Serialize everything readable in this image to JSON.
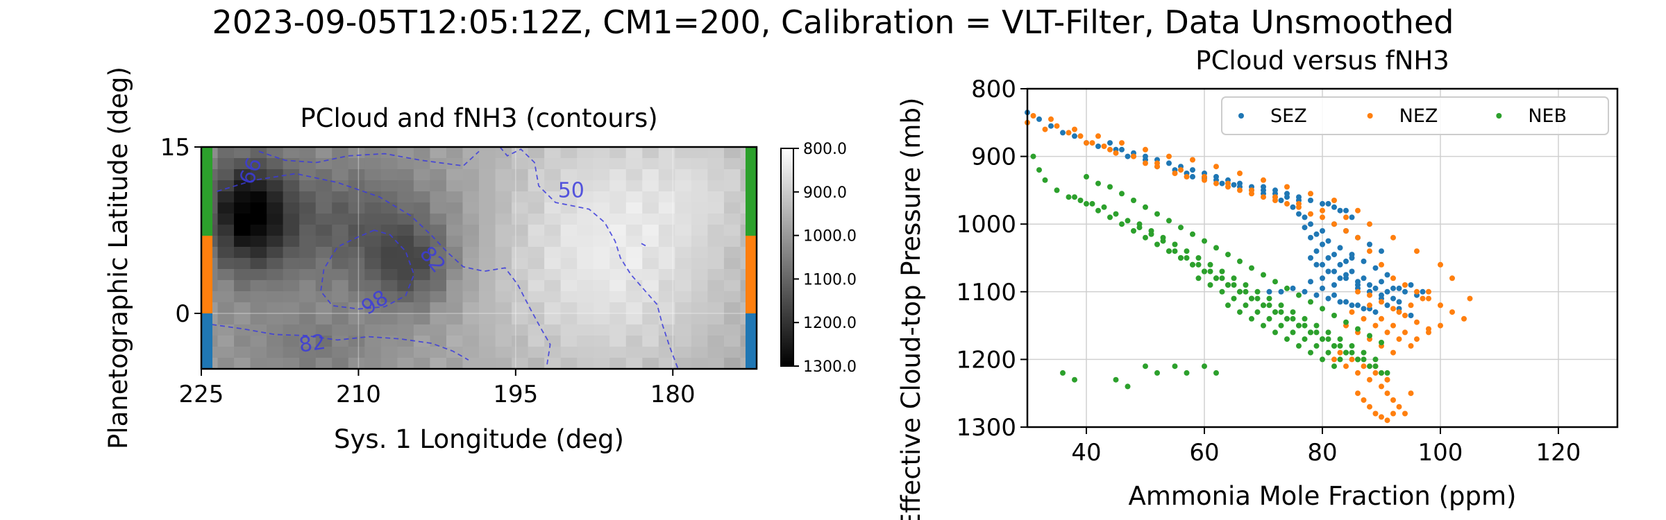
{
  "figure": {
    "suptitle": "2023-09-05T12:05:12Z, CM1=200, Calibration = VLT-Filter, Data Unsmoothed"
  },
  "chart_data": [
    {
      "type": "heatmap",
      "title": "PCloud and fNH3 (contours)",
      "xlabel": "Sys. 1 Longitude (deg)",
      "ylabel": "Planetographic Latitude (deg)",
      "xlim": [
        225,
        172
      ],
      "ylim": [
        -5,
        15
      ],
      "xticks": [
        "225",
        "210",
        "195",
        "180"
      ],
      "yticks": [
        "15",
        "0"
      ],
      "colormap": "gray",
      "colorbar": {
        "range": [
          800,
          1300
        ],
        "reversed": true,
        "ticks": [
          "800.0",
          "900.0",
          "1000.0",
          "1100.0",
          "1200.0",
          "1300.0"
        ]
      },
      "contours": {
        "color": "#3b3bdc",
        "labels": [
          "66",
          "50",
          "82",
          "98",
          "82"
        ]
      },
      "zone_bars": [
        {
          "name": "NEB",
          "color": "#2ca02c",
          "lat": [
            7,
            15
          ]
        },
        {
          "name": "NEZ",
          "color": "#ff7f0e",
          "lat": [
            0,
            7
          ]
        },
        {
          "name": "SEZ",
          "color": "#1f77b4",
          "lat": [
            -5,
            0
          ]
        }
      ],
      "grid": true
    },
    {
      "type": "scatter",
      "title": "PCloud versus fNH3",
      "xlabel": "Ammonia Mole Fraction (ppm)",
      "ylabel": "Effective Cloud-top Pressure (mb)",
      "xlim": [
        30,
        130
      ],
      "ylim": [
        1300,
        800
      ],
      "xticks": [
        "40",
        "60",
        "80",
        "100",
        "120"
      ],
      "yticks": [
        "800",
        "900",
        "1000",
        "1100",
        "1200",
        "1300"
      ],
      "legend": "top-right",
      "grid": true,
      "series": [
        {
          "name": "SEZ",
          "color": "#1f77b4",
          "x": [
            30,
            32,
            34,
            36,
            38,
            40,
            42,
            45,
            47,
            50,
            52,
            55,
            57,
            58,
            60,
            62,
            63,
            65,
            66,
            68,
            70,
            72,
            73,
            75,
            76,
            77,
            78,
            78,
            79,
            79,
            80,
            80,
            80,
            81,
            81,
            82,
            82,
            83,
            83,
            84,
            84,
            85,
            85,
            86,
            86,
            87,
            88,
            88,
            89,
            90,
            90,
            91,
            92,
            93,
            93,
            94,
            95,
            96,
            97,
            77,
            79,
            81,
            83,
            85,
            87,
            89,
            91,
            78,
            80,
            82,
            84,
            86,
            88,
            90,
            92,
            78,
            80,
            82,
            84,
            86,
            88,
            71,
            73,
            75,
            77,
            79,
            81,
            83,
            85,
            87,
            89,
            91,
            93,
            95,
            44,
            46,
            48,
            50,
            52,
            54,
            56,
            58,
            60,
            62,
            64,
            66,
            68,
            70,
            72,
            74,
            76,
            70,
            72,
            74,
            76,
            78,
            80,
            82,
            84,
            81,
            83,
            85,
            82,
            84,
            86,
            88,
            90
          ],
          "y": [
            835,
            845,
            855,
            865,
            870,
            880,
            885,
            890,
            900,
            905,
            915,
            920,
            925,
            930,
            932,
            935,
            940,
            942,
            945,
            950,
            955,
            960,
            965,
            975,
            985,
            990,
            1000,
            1020,
            1040,
            1060,
            1010,
            1030,
            1080,
            1050,
            1070,
            1045,
            1090,
            1060,
            1080,
            1055,
            1075,
            1050,
            1070,
            1085,
            1095,
            1080,
            1090,
            1100,
            1095,
            1085,
            1105,
            1100,
            1110,
            1095,
            1115,
            1100,
            1090,
            1105,
            1100,
            1005,
            1015,
            1025,
            1035,
            1045,
            1055,
            1065,
            1075,
            1050,
            1060,
            1070,
            1080,
            1090,
            1100,
            1110,
            1095,
            1085,
            1095,
            1105,
            1115,
            1120,
            1125,
            1100,
            1100,
            1095,
            1100,
            1105,
            1110,
            1115,
            1120,
            1125,
            1130,
            1120,
            1125,
            1135,
            880,
            890,
            895,
            900,
            905,
            910,
            915,
            920,
            925,
            930,
            935,
            940,
            945,
            950,
            955,
            960,
            965,
            945,
            950,
            955,
            960,
            965,
            970,
            975,
            980,
            970,
            980,
            990,
            1000,
            1010,
            1020,
            1030,
            1040
          ]
        },
        {
          "name": "NEZ",
          "color": "#ff7f0e",
          "x": [
            30,
            31,
            33,
            35,
            37,
            39,
            41,
            43,
            45,
            48,
            50,
            52,
            55,
            57,
            60,
            62,
            64,
            66,
            68,
            70,
            72,
            74,
            76,
            78,
            80,
            82,
            84,
            86,
            88,
            90,
            92,
            94,
            96,
            98,
            100,
            102,
            104,
            105,
            88,
            90,
            92,
            94,
            96,
            98,
            100,
            86,
            88,
            90,
            92,
            94,
            96,
            98,
            85,
            87,
            89,
            91,
            93,
            95,
            84,
            86,
            88,
            90,
            92,
            83,
            85,
            87,
            89,
            91,
            82,
            84,
            86,
            88,
            90,
            91,
            92,
            93,
            94,
            86,
            87,
            88,
            89,
            90,
            91,
            92,
            89,
            90,
            91,
            95,
            34,
            38,
            42,
            46,
            50,
            54,
            58,
            62,
            66,
            70,
            74,
            78,
            82,
            86,
            40,
            44,
            48,
            52,
            56,
            60,
            64,
            68,
            72,
            76,
            80,
            84,
            88,
            92,
            96,
            100,
            102,
            98,
            97,
            95,
            93
          ],
          "y": [
            850,
            840,
            860,
            855,
            865,
            870,
            880,
            885,
            895,
            900,
            910,
            915,
            925,
            930,
            935,
            940,
            945,
            950,
            955,
            960,
            965,
            970,
            975,
            985,
            990,
            1000,
            1010,
            1020,
            1040,
            1060,
            1080,
            1090,
            1100,
            1110,
            1120,
            1130,
            1140,
            1110,
            1120,
            1140,
            1150,
            1160,
            1170,
            1160,
            1150,
            1100,
            1105,
            1115,
            1125,
            1135,
            1145,
            1155,
            1130,
            1140,
            1150,
            1160,
            1170,
            1180,
            1150,
            1160,
            1170,
            1180,
            1190,
            1190,
            1200,
            1210,
            1220,
            1230,
            1200,
            1210,
            1220,
            1230,
            1240,
            1250,
            1260,
            1270,
            1280,
            1250,
            1260,
            1270,
            1280,
            1285,
            1290,
            1280,
            1210,
            1220,
            1230,
            1250,
            845,
            860,
            870,
            880,
            890,
            900,
            905,
            915,
            925,
            935,
            945,
            955,
            965,
            980,
            880,
            890,
            900,
            910,
            920,
            930,
            940,
            950,
            960,
            970,
            980,
            990,
            1000,
            1020,
            1040,
            1060,
            1080,
            1100,
            1110,
            1120,
            1130
          ]
        },
        {
          "name": "NEB",
          "color": "#2ca02c",
          "x": [
            31,
            32,
            33,
            35,
            37,
            39,
            41,
            43,
            45,
            47,
            49,
            51,
            53,
            55,
            57,
            59,
            61,
            63,
            65,
            67,
            69,
            71,
            73,
            75,
            77,
            79,
            81,
            83,
            85,
            87,
            89,
            91,
            38,
            40,
            42,
            44,
            46,
            48,
            50,
            52,
            54,
            56,
            58,
            60,
            62,
            64,
            66,
            68,
            70,
            72,
            74,
            76,
            78,
            80,
            82,
            84,
            86,
            88,
            90,
            45,
            47,
            49,
            51,
            53,
            55,
            57,
            59,
            61,
            63,
            65,
            67,
            69,
            71,
            73,
            75,
            77,
            79,
            81,
            83,
            85,
            87,
            89,
            50,
            52,
            54,
            56,
            58,
            60,
            62,
            64,
            66,
            68,
            70,
            72,
            74,
            76,
            78,
            80,
            82,
            84,
            86,
            55,
            57,
            59,
            61,
            63,
            65,
            67,
            69,
            71,
            73,
            75,
            77,
            79,
            81,
            83,
            60,
            62,
            64,
            66,
            68,
            70,
            72,
            74,
            76,
            78,
            80,
            82,
            36,
            38,
            40,
            42,
            44,
            46,
            48,
            50,
            52,
            54,
            56,
            58,
            60,
            62,
            64,
            66,
            68,
            70,
            72,
            74,
            76,
            78,
            80,
            82,
            84,
            86,
            88,
            90
          ],
          "y": [
            900,
            920,
            935,
            950,
            960,
            965,
            970,
            975,
            985,
            995,
            1005,
            1015,
            1025,
            1040,
            1050,
            1060,
            1070,
            1080,
            1090,
            1100,
            1110,
            1120,
            1130,
            1140,
            1150,
            1160,
            1170,
            1180,
            1190,
            1200,
            1210,
            1220,
            960,
            970,
            980,
            990,
            1000,
            1010,
            1020,
            1030,
            1040,
            1050,
            1060,
            1070,
            1080,
            1090,
            1100,
            1110,
            1120,
            1130,
            1140,
            1150,
            1160,
            1170,
            1180,
            1190,
            1200,
            1210,
            1220,
            1230,
            1240,
            1000,
            1010,
            1020,
            1030,
            1040,
            1050,
            1060,
            1070,
            1080,
            1090,
            1100,
            1110,
            1120,
            1130,
            1140,
            1150,
            1160,
            1170,
            1180,
            1190,
            1200,
            1210,
            1220,
            1040,
            1050,
            1060,
            1070,
            1080,
            1090,
            1100,
            1110,
            1120,
            1130,
            1140,
            1150,
            1160,
            1170,
            1180,
            1190,
            1200,
            1210,
            1220,
            1080,
            1090,
            1100,
            1110,
            1120,
            1130,
            1140,
            1150,
            1160,
            1170,
            1180,
            1190,
            1200,
            1210,
            1220,
            1120,
            1130,
            1140,
            1150,
            1160,
            1170,
            1180,
            1190,
            1200,
            1210,
            1220,
            1230,
            930,
            940,
            945,
            955,
            965,
            975,
            985,
            995,
            1005,
            1015,
            1025,
            1035,
            1045,
            1055,
            1065,
            1075,
            1085,
            1095,
            1105,
            1115,
            1125,
            1135,
            1145,
            1155,
            1165,
            1175
          ]
        }
      ]
    }
  ]
}
